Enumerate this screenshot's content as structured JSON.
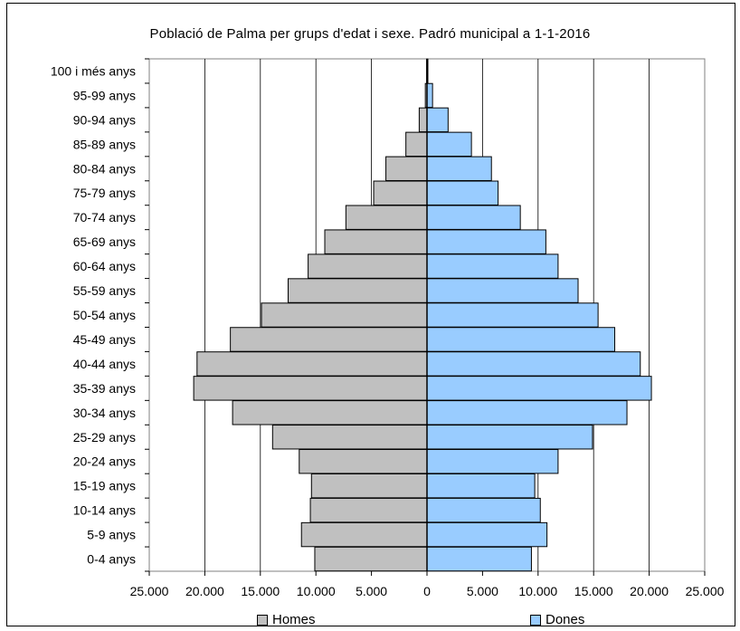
{
  "chart_data": {
    "type": "bar",
    "orientation": "horizontal",
    "subtype": "population-pyramid",
    "title": "Població de Palma per grups d'edat i sexe. Padró municipal a 1-1-2016",
    "categories": [
      "0-4 anys",
      "5-9 anys",
      "10-14 anys",
      "15-19 anys",
      "20-24 anys",
      "25-29 anys",
      "30-34 anys",
      "35-39 anys",
      "40-44 anys",
      "45-49 anys",
      "50-54 anys",
      "55-59 anys",
      "60-64 anys",
      "65-69 anys",
      "70-74 anys",
      "75-79 anys",
      "80-84 anys",
      "85-89 anys",
      "90-94 anys",
      "95-99 anys",
      "100 i més anys"
    ],
    "series": [
      {
        "name": "Homes",
        "color": "#c0c0c0",
        "side": "left",
        "values": [
          10100,
          11300,
          10500,
          10400,
          11500,
          13900,
          17500,
          21000,
          20700,
          17700,
          14900,
          12500,
          10700,
          9200,
          7300,
          4800,
          3700,
          1900,
          700,
          150,
          30
        ]
      },
      {
        "name": "Dones",
        "color": "#99ccff",
        "side": "right",
        "values": [
          9400,
          10800,
          10200,
          9700,
          11800,
          14900,
          18000,
          20200,
          19200,
          16900,
          15400,
          13600,
          11800,
          10700,
          8400,
          6400,
          5800,
          4000,
          1900,
          500,
          80
        ]
      }
    ],
    "xlim": [
      -25000,
      25000
    ],
    "x_ticks": [
      "25.000",
      "20.000",
      "15.000",
      "10.000",
      "5.000",
      "0",
      "5.000",
      "10.000",
      "15.000",
      "20.000",
      "25.000"
    ],
    "grid": "vertical",
    "legend": "bottom"
  }
}
